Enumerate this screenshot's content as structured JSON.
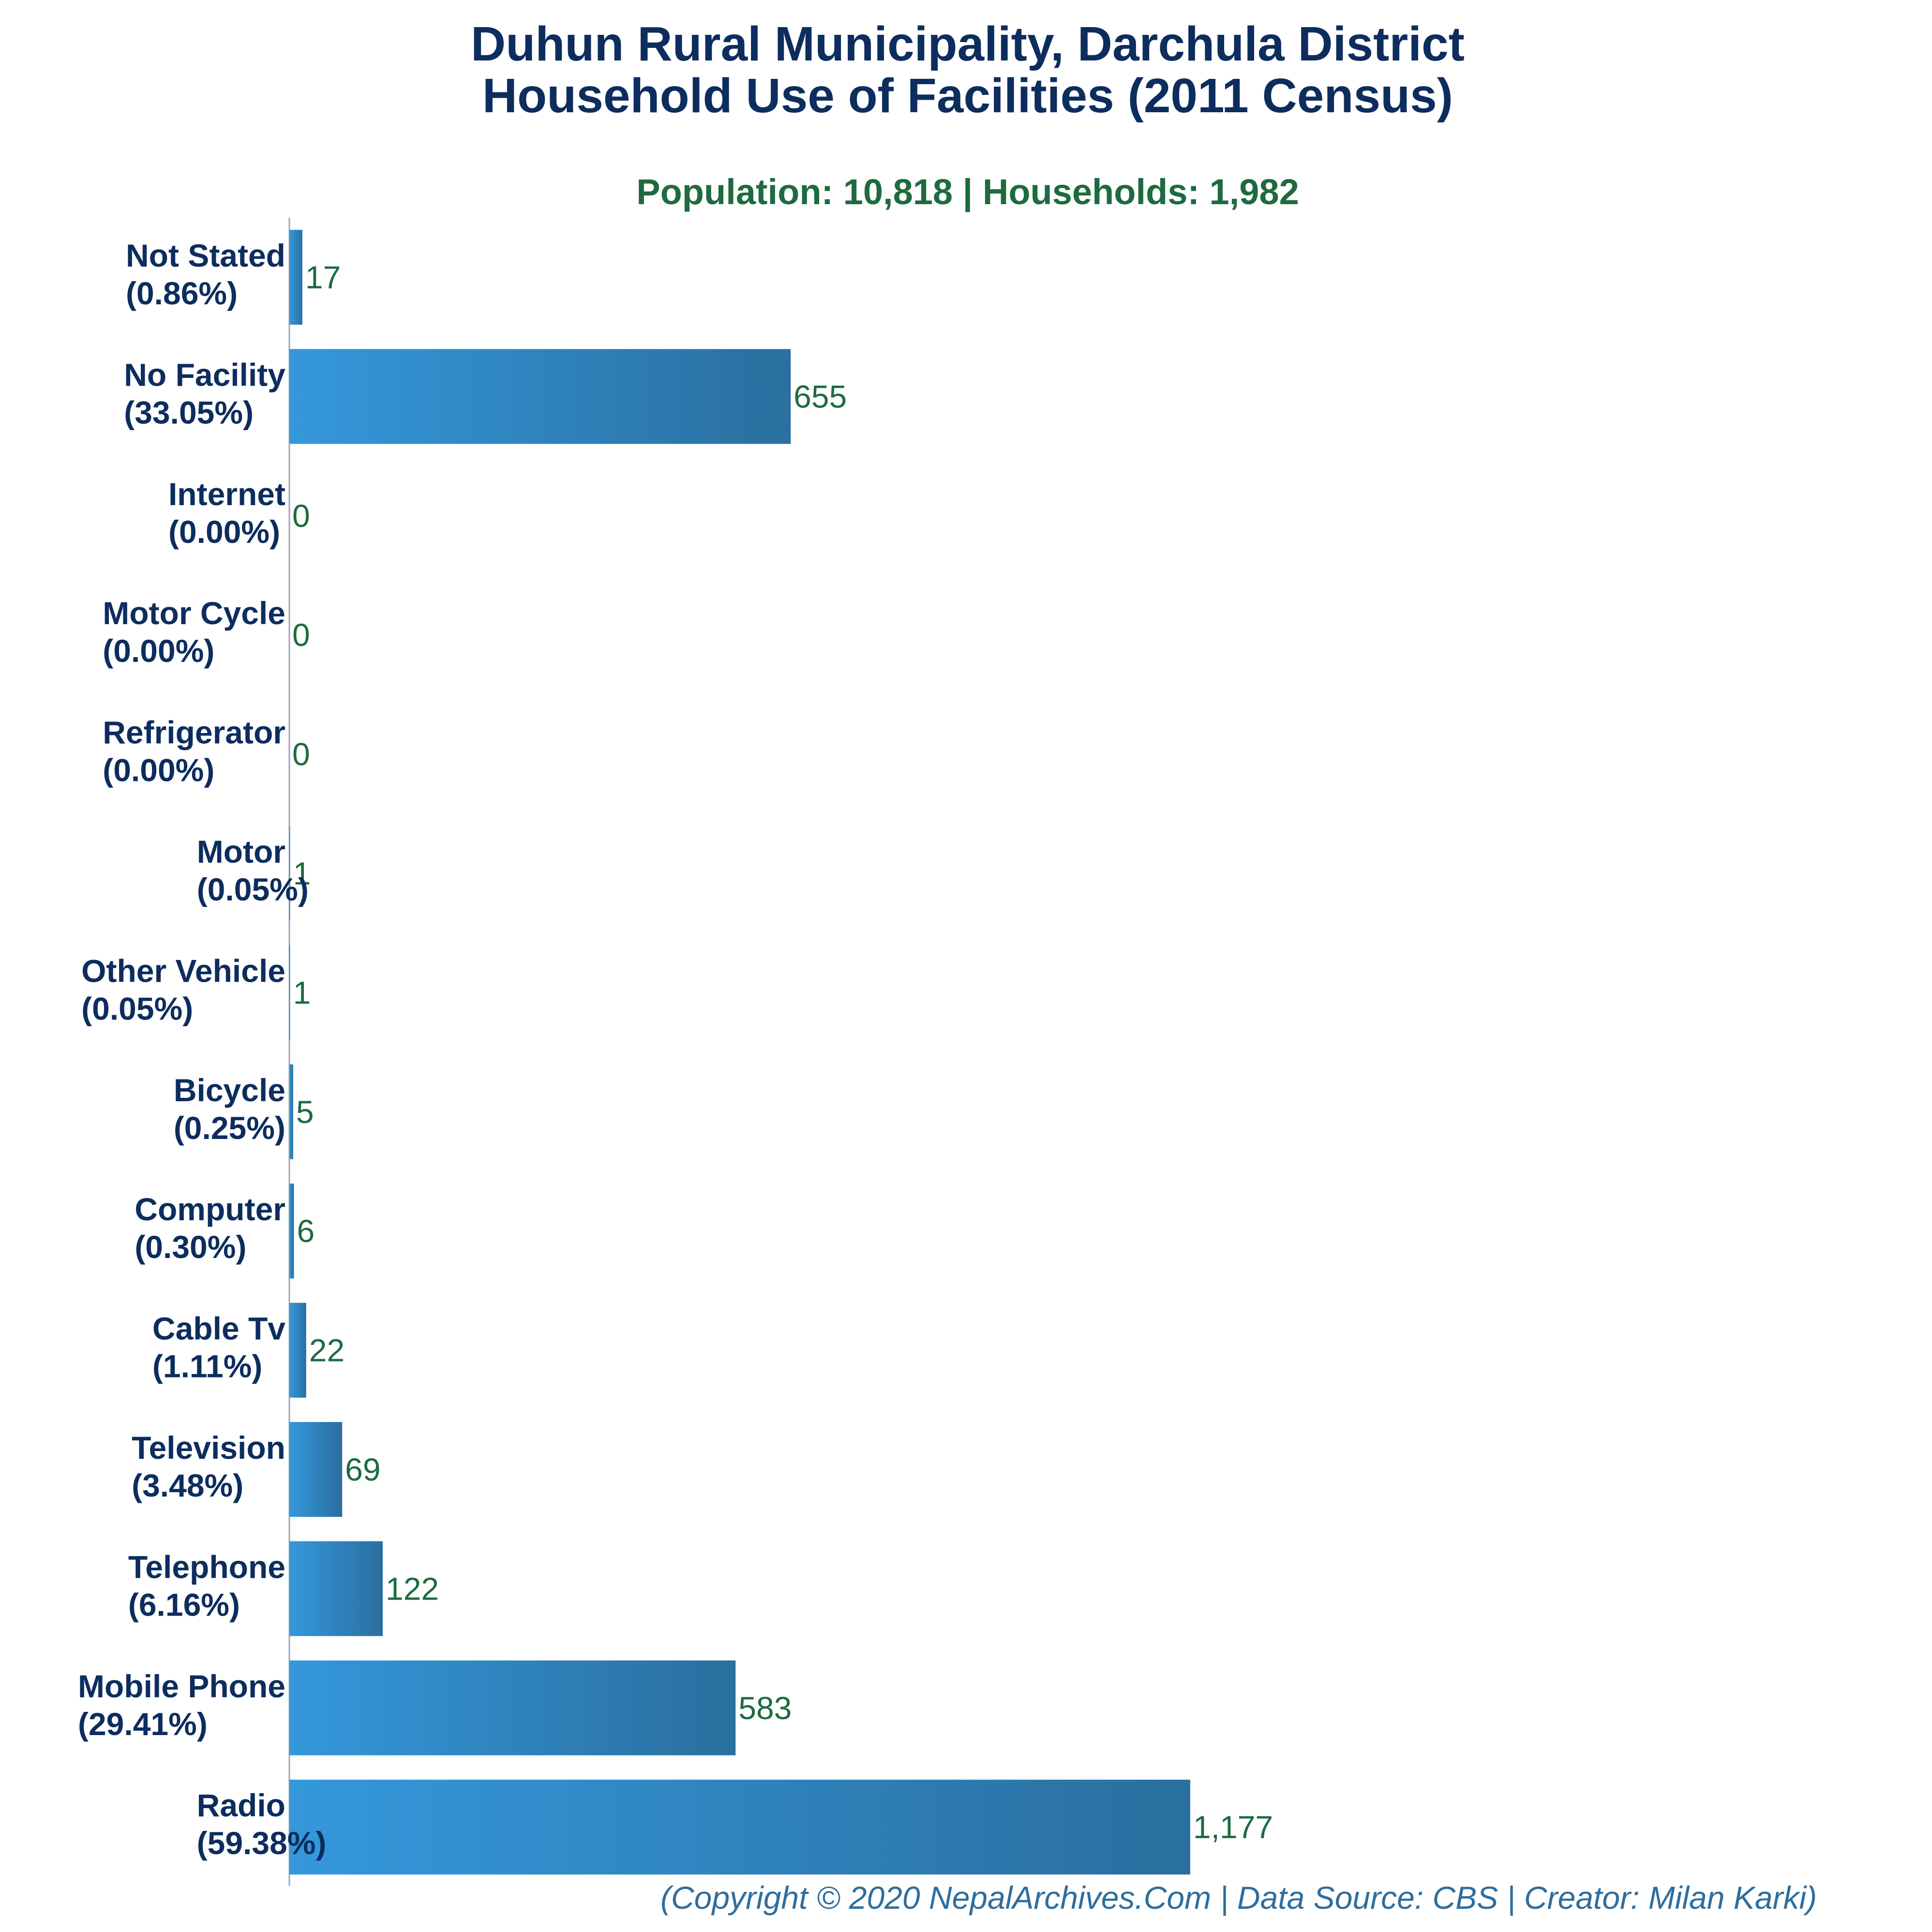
{
  "chart_data": {
    "type": "bar",
    "orientation": "horizontal",
    "title": "Duhun Rural Municipality, Darchula District",
    "title_line2": "Household Use of Facilities (2011 Census)",
    "subtitle": "Population: 10,818 | Households: 1,982",
    "categories": [
      "Not Stated",
      "No Facility",
      "Internet",
      "Motor Cycle",
      "Refrigerator",
      "Motor",
      "Other Vehicle",
      "Bicycle",
      "Computer",
      "Cable Tv",
      "Television",
      "Telephone",
      "Mobile Phone",
      "Radio"
    ],
    "percent_labels": [
      "(0.86%)",
      "(33.05%)",
      "(0.00%)",
      "(0.00%)",
      "(0.00%)",
      "(0.05%)",
      "(0.05%)",
      "(0.25%)",
      "(0.30%)",
      "(1.11%)",
      "(3.48%)",
      "(6.16%)",
      "(29.41%)",
      "(59.38%)"
    ],
    "values": [
      17,
      655,
      0,
      0,
      0,
      1,
      1,
      5,
      6,
      22,
      69,
      122,
      583,
      1177
    ],
    "value_labels": [
      "17",
      "655",
      "0",
      "0",
      "0",
      "1",
      "1",
      "5",
      "6",
      "22",
      "69",
      "122",
      "583",
      "1,177"
    ],
    "xlim": [
      0,
      2100
    ],
    "grid": false,
    "legend": "none",
    "colors": {
      "bar_start": "#3498db",
      "bar_end": "#2a6f9f",
      "title": "#0d2d5e",
      "subtitle": "#1d6b3f",
      "value": "#1d6b3f",
      "footer": "#2e6e9e"
    }
  },
  "footer": "(Copyright © 2020 NepalArchives.Com | Data Source: CBS | Creator: Milan Karki)"
}
